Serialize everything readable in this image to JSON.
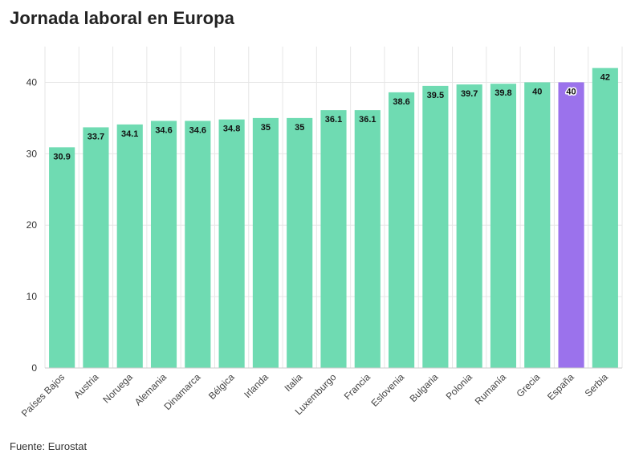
{
  "title": "Jornada laboral en Europa",
  "source": "Fuente: Eurostat",
  "colors": {
    "default": "#6fdbb2",
    "highlight": "#9b72ec",
    "grid": "#e6e6e6",
    "axis": "#cccccc"
  },
  "chart_data": {
    "type": "bar",
    "title": "Jornada laboral en Europa",
    "xlabel": "",
    "ylabel": "",
    "ylim": [
      0,
      45
    ],
    "yticks": [
      0,
      10,
      20,
      30,
      40
    ],
    "grid": true,
    "highlight_category": "España",
    "categories": [
      "Países Bajos",
      "Austria",
      "Noruega",
      "Alemania",
      "Dinamarca",
      "Bélgica",
      "Irlanda",
      "Italia",
      "Luxemburgo",
      "Francia",
      "Eslovenia",
      "Bulgaria",
      "Polonia",
      "Rumanía",
      "Grecia",
      "España",
      "Serbia"
    ],
    "values": [
      30.9,
      33.7,
      34.1,
      34.6,
      34.6,
      34.8,
      35,
      35,
      36.1,
      36.1,
      38.6,
      39.5,
      39.7,
      39.8,
      40,
      40,
      42
    ],
    "value_labels": [
      "30.9",
      "33.7",
      "34.1",
      "34.6",
      "34.6",
      "34.8",
      "35",
      "35",
      "36.1",
      "36.1",
      "38.6",
      "39.5",
      "39.7",
      "39.8",
      "40",
      "40",
      "42"
    ]
  }
}
